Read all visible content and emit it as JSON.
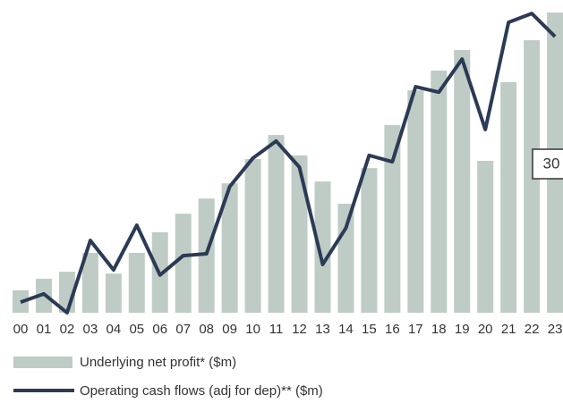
{
  "chart_data": {
    "type": "bar_line",
    "categories": [
      "00",
      "01",
      "02",
      "03",
      "04",
      "05",
      "06",
      "07",
      "08",
      "09",
      "10",
      "11",
      "12",
      "13",
      "14",
      "15",
      "16",
      "17",
      "18",
      "19",
      "20",
      "21",
      "22",
      "23"
    ],
    "series": [
      {
        "name": "Underlying net profit* ($m)",
        "color": "#bfccc5",
        "type": "bar",
        "values": [
          7.4,
          11.2,
          13.5,
          19.7,
          12.9,
          19.7,
          26.5,
          32.6,
          37.6,
          42.6,
          50.6,
          58.5,
          51.8,
          43.2,
          35.9,
          47.6,
          61.8,
          73.2,
          79.7,
          86.5,
          50,
          75.9,
          89.7,
          98.8
        ]
      },
      {
        "name": "Operating cash flows (adj for dep)** ($m)",
        "color": "#2b3a55",
        "type": "line",
        "values": [
          3.5,
          6.2,
          0,
          23.8,
          14.1,
          28.8,
          12.4,
          18.8,
          19.4,
          41.5,
          50.9,
          56.5,
          47.9,
          15.9,
          27.9,
          51.8,
          49.7,
          74.4,
          72.6,
          83.5,
          60.3,
          95.6,
          98.5,
          90.9
        ]
      }
    ],
    "ylim": [
      0,
      100
    ],
    "annotation": "30"
  }
}
